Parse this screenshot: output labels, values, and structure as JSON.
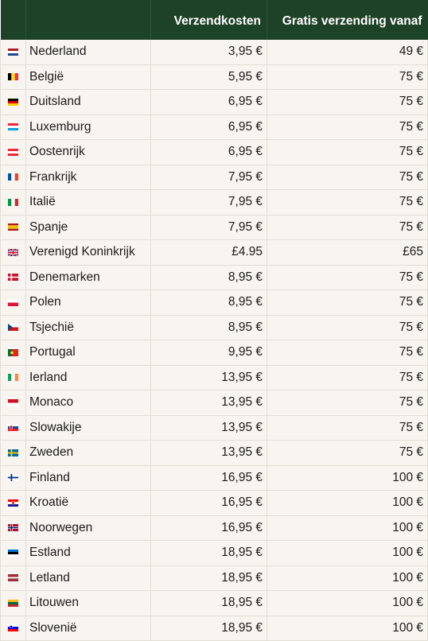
{
  "table": {
    "headers": [
      "",
      "",
      "Verzendkosten",
      "Gratis verzending vanaf"
    ],
    "rows": [
      {
        "flag": "netherlands-flag",
        "country": "Nederland",
        "cost": "3,95 €",
        "free_from": "49 €",
        "group_start": true
      },
      {
        "flag": "belgium-flag",
        "country": "België",
        "cost": "5,95 €",
        "free_from": "75 €",
        "group_start": true
      },
      {
        "flag": "germany-flag",
        "country": "Duitsland",
        "cost": "6,95 €",
        "free_from": "75 €",
        "group_start": false
      },
      {
        "flag": "luxembourg-flag",
        "country": "Luxemburg",
        "cost": "6,95 €",
        "free_from": "75 €",
        "group_start": false
      },
      {
        "flag": "austria-flag",
        "country": "Oostenrijk",
        "cost": "6,95 €",
        "free_from": "75 €",
        "group_start": false
      },
      {
        "flag": "france-flag",
        "country": "Frankrijk",
        "cost": "7,95 €",
        "free_from": "75 €",
        "group_start": true
      },
      {
        "flag": "italy-flag",
        "country": "Italië",
        "cost": "7,95 €",
        "free_from": "75 €",
        "group_start": false
      },
      {
        "flag": "spain-flag",
        "country": "Spanje",
        "cost": "7,95 €",
        "free_from": "75 €",
        "group_start": false
      },
      {
        "flag": "united-kingdom-flag",
        "country": "Verenigd Koninkrijk",
        "cost": "£4.95",
        "free_from": "£65",
        "group_start": false
      },
      {
        "flag": "denmark-flag",
        "country": "Denemarken",
        "cost": "8,95 €",
        "free_from": "75 €",
        "group_start": true
      },
      {
        "flag": "poland-flag",
        "country": "Polen",
        "cost": "8,95 €",
        "free_from": "75 €",
        "group_start": false
      },
      {
        "flag": "czech-flag",
        "country": "Tsjechië",
        "cost": "8,95 €",
        "free_from": "75 €",
        "group_start": false
      },
      {
        "flag": "portugal-flag",
        "country": "Portugal",
        "cost": "9,95 €",
        "free_from": "75 €",
        "group_start": true
      },
      {
        "flag": "ireland-flag",
        "country": "Ierland",
        "cost": "13,95 €",
        "free_from": "75 €",
        "group_start": true
      },
      {
        "flag": "monaco-flag",
        "country": "Monaco",
        "cost": "13,95 €",
        "free_from": "75 €",
        "group_start": false
      },
      {
        "flag": "slovakia-flag",
        "country": "Slowakije",
        "cost": "13,95 €",
        "free_from": "75 €",
        "group_start": false
      },
      {
        "flag": "sweden-flag",
        "country": "Zweden",
        "cost": "13,95 €",
        "free_from": "75 €",
        "group_start": false
      },
      {
        "flag": "finland-flag",
        "country": "Finland",
        "cost": "16,95 €",
        "free_from": "100 €",
        "group_start": true
      },
      {
        "flag": "croatia-flag",
        "country": "Kroatië",
        "cost": "16,95 €",
        "free_from": "100 €",
        "group_start": false
      },
      {
        "flag": "norway-flag",
        "country": "Noorwegen",
        "cost": "16,95 €",
        "free_from": "100 €",
        "group_start": false
      },
      {
        "flag": "estonia-flag",
        "country": "Estland",
        "cost": "18,95 €",
        "free_from": "100 €",
        "group_start": true
      },
      {
        "flag": "latvia-flag",
        "country": "Letland",
        "cost": "18,95 €",
        "free_from": "100 €",
        "group_start": false
      },
      {
        "flag": "lithuania-flag",
        "country": "Litouwen",
        "cost": "18,95 €",
        "free_from": "100 €",
        "group_start": false
      },
      {
        "flag": "slovenia-flag",
        "country": "Slovenië",
        "cost": "18,95 €",
        "free_from": "100 €",
        "group_start": false
      }
    ]
  },
  "colors": {
    "header_bg": "#1e4227",
    "row_bg": "#f8f4ef",
    "group_line": "#2a4a30"
  }
}
